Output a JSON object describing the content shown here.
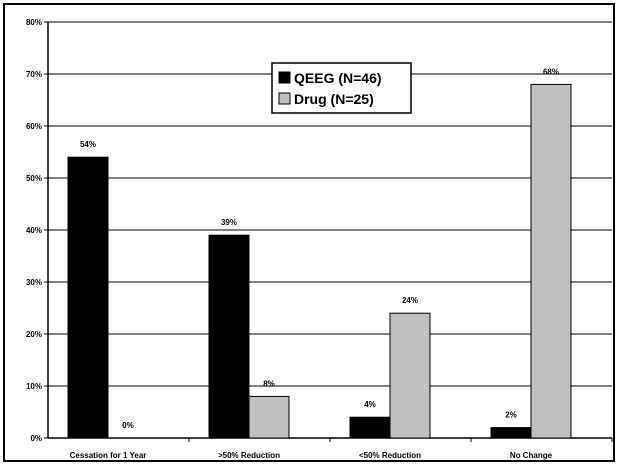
{
  "chart_data": {
    "type": "bar",
    "categories": [
      "Cessation for 1 Year",
      ">50% Reduction",
      "<50% Reduction",
      "No Change"
    ],
    "series": [
      {
        "name": "QEEG (N=46)",
        "values": [
          54,
          39,
          4,
          2
        ],
        "labels": [
          "54%",
          "39%",
          "4%",
          "2%"
        ],
        "color": "#000000"
      },
      {
        "name": "Drug (N=25)",
        "values": [
          0,
          8,
          24,
          68
        ],
        "labels": [
          "0%",
          "8%",
          "24%",
          "68%"
        ],
        "color": "#c0c0c0"
      }
    ],
    "title": "",
    "xlabel": "",
    "ylabel": "",
    "ylim": [
      0,
      80
    ],
    "yticks": [
      "0%",
      "10%",
      "20%",
      "30%",
      "40%",
      "50%",
      "60%",
      "70%",
      "80%"
    ],
    "grid": true,
    "legend_position": "top-center"
  }
}
